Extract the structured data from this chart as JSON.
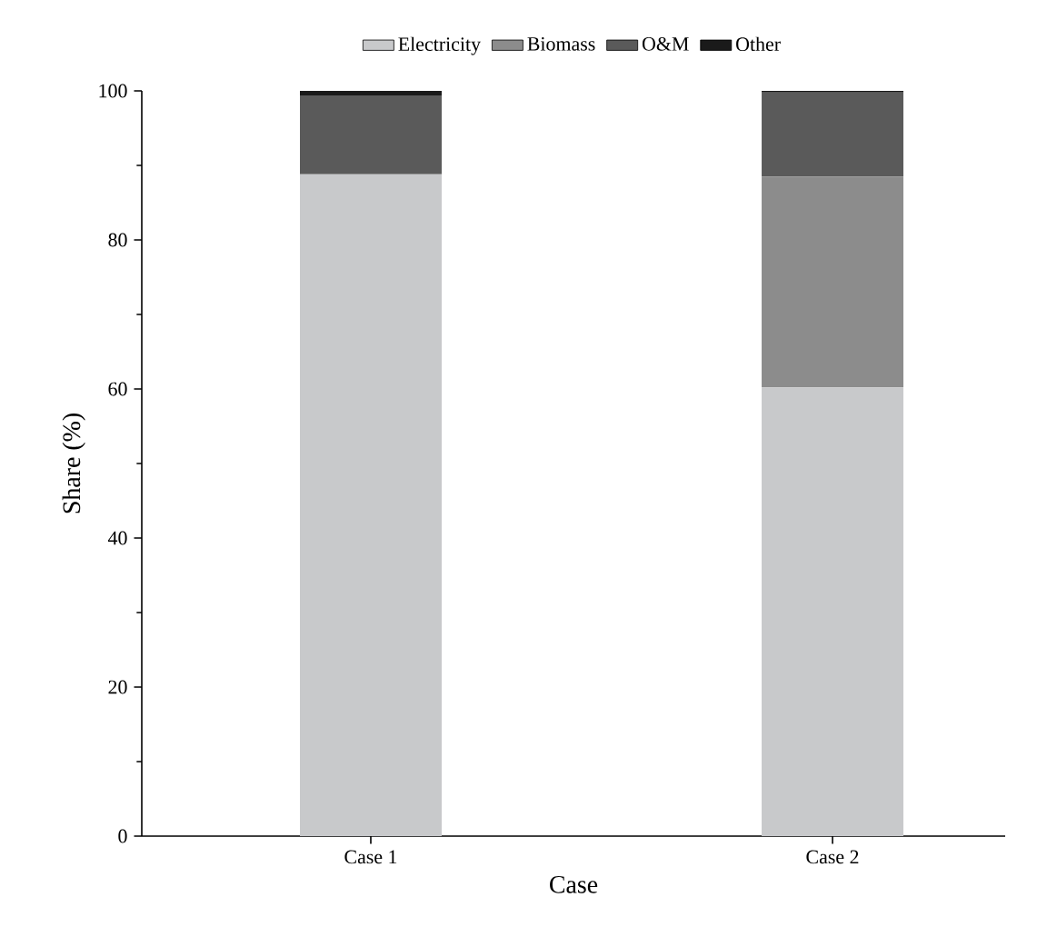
{
  "chart_data": {
    "type": "bar",
    "stacked": true,
    "xlabel": "Case",
    "ylabel": "Share (%)",
    "categories": [
      "Case 1",
      "Case 2"
    ],
    "series": [
      {
        "name": "Electricity",
        "color": "#c8c9cb",
        "values": [
          88.8,
          60.2
        ]
      },
      {
        "name": "Biomass",
        "color": "#8c8c8c",
        "values": [
          null,
          28.3
        ]
      },
      {
        "name": "O&M",
        "color": "#5a5a5a",
        "values": [
          10.6,
          11.3
        ]
      },
      {
        "name": "Other",
        "color": "#1a1a1a",
        "values": [
          0.6,
          0.2
        ]
      }
    ],
    "ylim": [
      0,
      100
    ],
    "yticks": [
      0,
      20,
      40,
      60,
      80,
      100
    ],
    "legend": "top"
  }
}
